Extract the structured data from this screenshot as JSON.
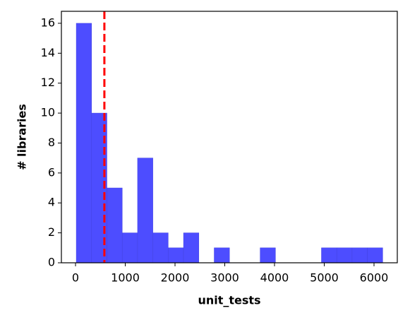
{
  "chart_data": {
    "type": "histogram",
    "xlabel": "unit_tests",
    "ylabel": "# libraries",
    "bins": [
      15,
      323,
      631,
      939,
      1247,
      1555,
      1863,
      2171,
      2479,
      2787,
      3095,
      3403,
      3711,
      4019,
      4327,
      4635,
      4943,
      5251,
      5559,
      5867,
      6175
    ],
    "values": [
      16,
      10,
      5,
      2,
      7,
      2,
      1,
      2,
      0,
      1,
      0,
      0,
      1,
      0,
      0,
      0,
      1,
      1,
      1,
      1
    ],
    "color": "#4d4dff",
    "vline": 580,
    "vline_color": "#ff0000",
    "xlim": [
      -284,
      6468
    ],
    "xticks": [
      0,
      1000,
      2000,
      3000,
      4000,
      5000,
      6000
    ],
    "ylim": [
      0,
      16.8
    ],
    "yticks": [
      0,
      2,
      4,
      6,
      8,
      10,
      12,
      14,
      16
    ]
  }
}
